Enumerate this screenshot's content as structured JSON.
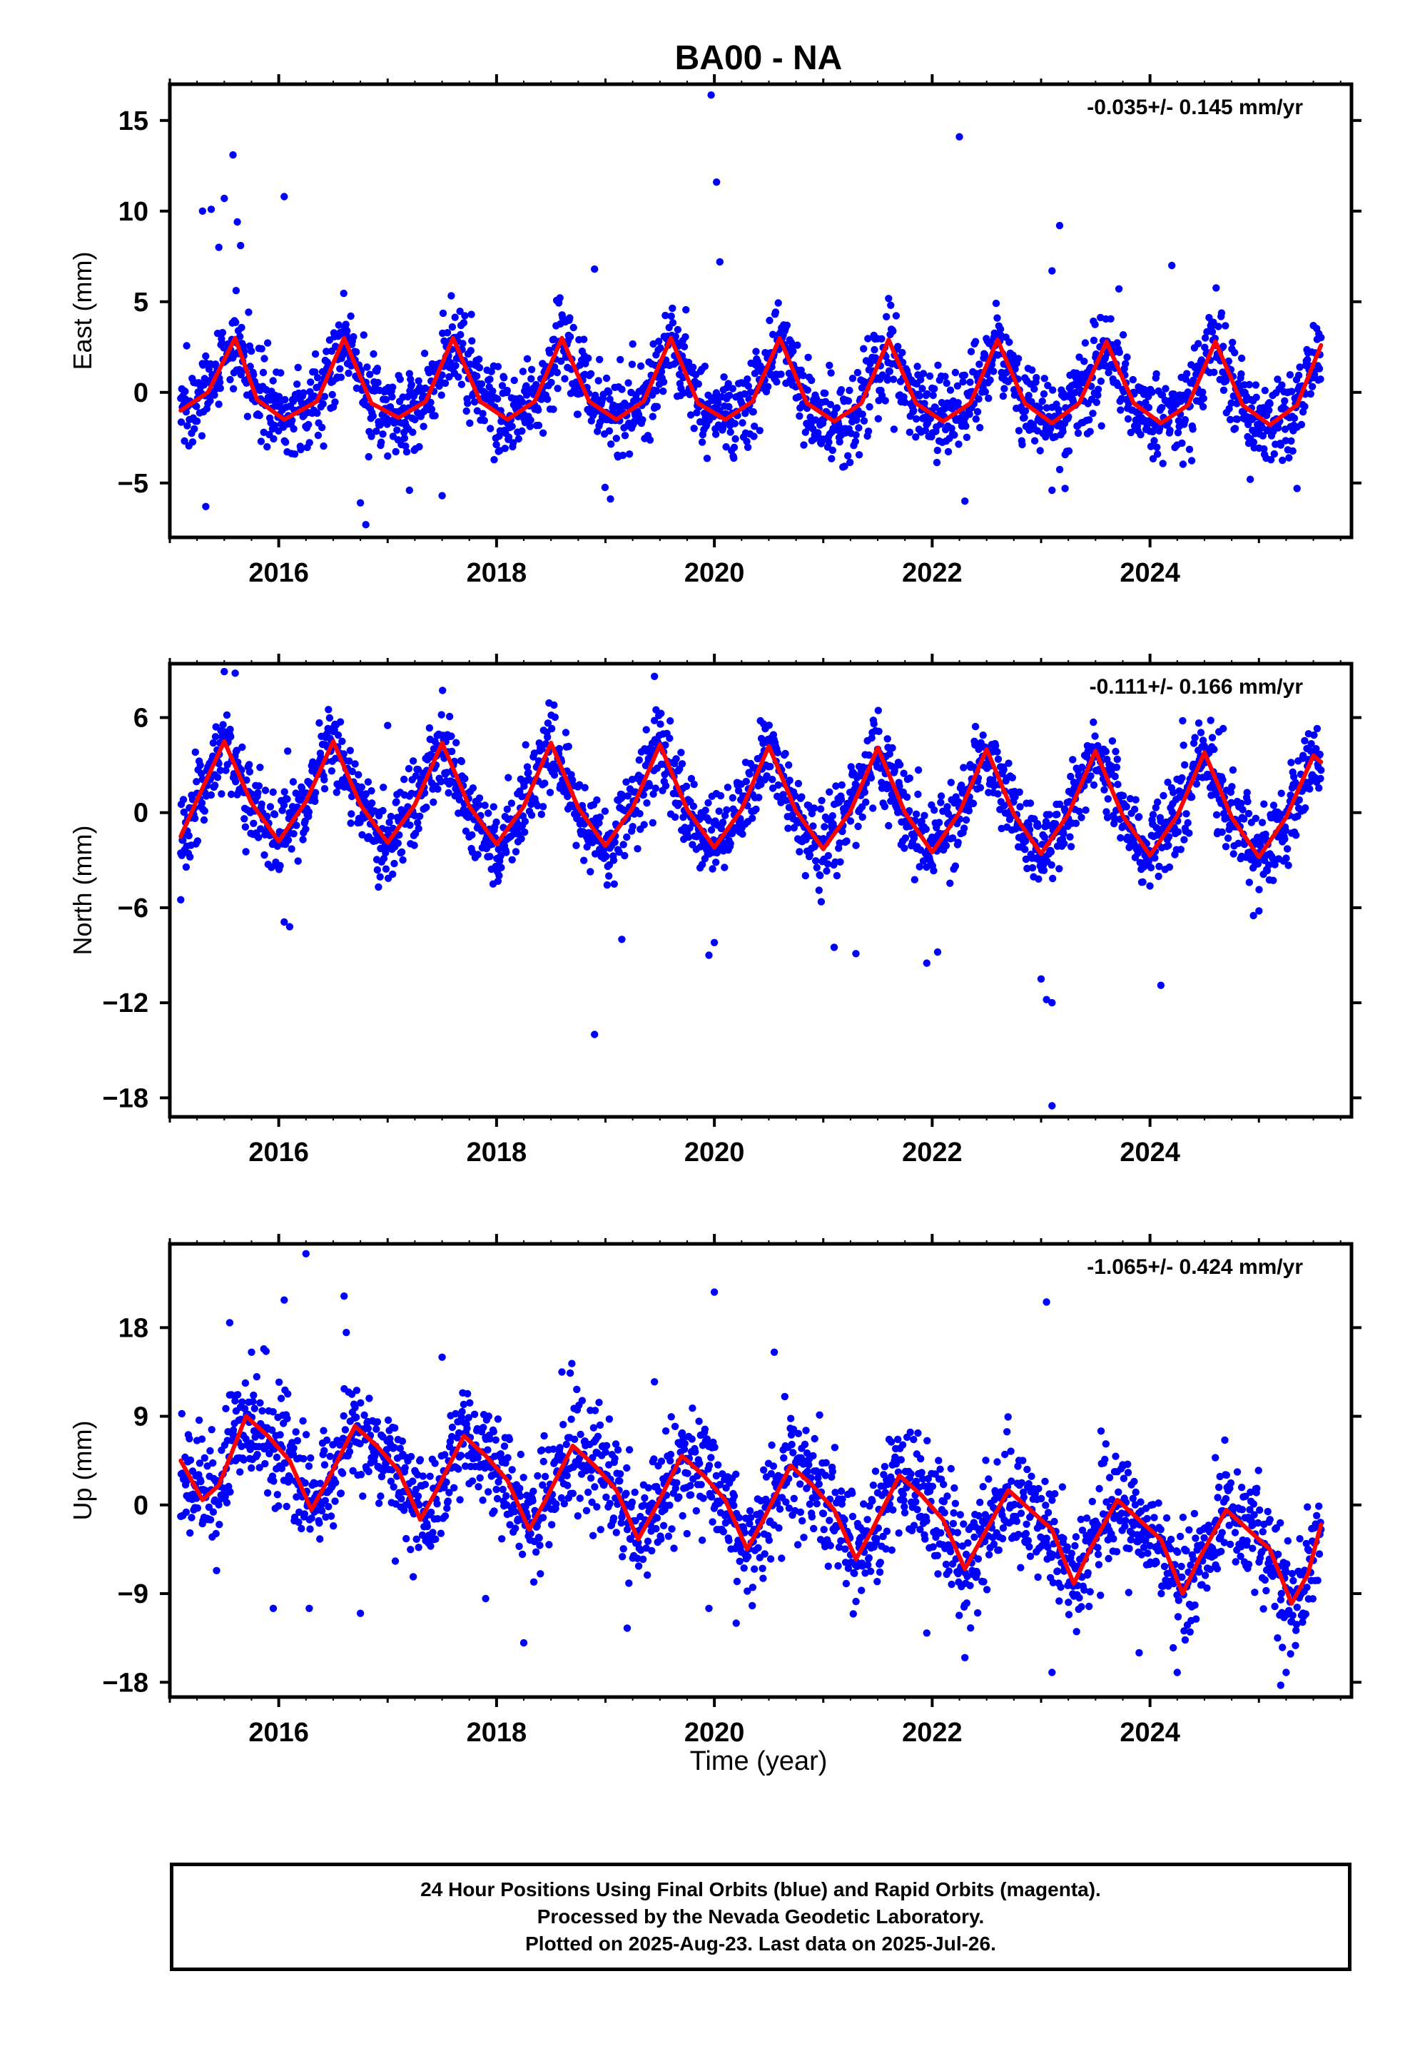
{
  "title": "BA00 - NA",
  "xlabel": "Time (year)",
  "footer": {
    "line1": "24 Hour Positions Using Final Orbits (blue) and Rapid Orbits (magenta).",
    "line2": "Processed by the Nevada Geodetic Laboratory.",
    "line3": "Plotted on 2025-Aug-23. Last data on 2025-Jul-26."
  },
  "colors": {
    "final_orbits": "#0000ff",
    "model_fit": "#ff0000",
    "axes": "#000000"
  },
  "chart_data": [
    {
      "type": "scatter",
      "name": "east",
      "ylabel": "East (mm)",
      "rate_label": "-0.035+/- 0.145 mm/yr",
      "xlim": [
        2015.0,
        2025.85
      ],
      "ylim": [
        -8.0,
        17.0
      ],
      "xticks": [
        2016,
        2018,
        2020,
        2022,
        2024
      ],
      "xtick_labels": [
        "2016",
        "2018",
        "2020",
        "2022",
        "2024"
      ],
      "yticks": [
        -5,
        0,
        5,
        10,
        15
      ],
      "ytick_labels": [
        "−5",
        "0",
        "5",
        "10",
        "15"
      ],
      "data_start": 2015.1,
      "data_end": 2025.57,
      "fit": {
        "x": [
          2015.1,
          2015.35,
          2015.6,
          2015.8,
          2016.05,
          2016.35,
          2016.6,
          2016.85,
          2017.1,
          2017.35,
          2017.6,
          2017.85,
          2018.1,
          2018.35,
          2018.6,
          2018.85,
          2019.1,
          2019.35,
          2019.6,
          2019.85,
          2020.1,
          2020.35,
          2020.6,
          2020.85,
          2021.1,
          2021.35,
          2021.6,
          2021.85,
          2022.1,
          2022.35,
          2022.6,
          2022.85,
          2023.1,
          2023.35,
          2023.6,
          2023.85,
          2024.1,
          2024.35,
          2024.6,
          2024.85,
          2025.1,
          2025.35,
          2025.57
        ],
        "y": [
          -1.0,
          0.0,
          3.0,
          -0.4,
          -1.5,
          -0.5,
          3.0,
          -0.6,
          -1.4,
          -0.5,
          3.0,
          -0.5,
          -1.5,
          -0.5,
          3.0,
          -0.5,
          -1.5,
          -0.5,
          3.0,
          -0.6,
          -1.5,
          -0.5,
          3.0,
          -0.6,
          -1.6,
          -0.6,
          2.9,
          -0.6,
          -1.6,
          -0.6,
          2.9,
          -0.6,
          -1.7,
          -0.6,
          2.8,
          -0.6,
          -1.7,
          -0.7,
          2.8,
          -0.7,
          -1.8,
          -0.7,
          2.6
        ]
      },
      "noise_sd": 1.2,
      "outliers": {
        "x": [
          2015.3,
          2015.33,
          2015.38,
          2015.5,
          2015.45,
          2015.58,
          2015.62,
          2015.65,
          2016.05,
          2016.75,
          2016.8,
          2017.2,
          2017.5,
          2018.9,
          2019.97,
          2020.02,
          2020.05,
          2022.25,
          2022.3,
          2023.1,
          2023.17,
          2023.1,
          2023.22,
          2024.2,
          2024.92,
          2025.35
        ],
        "y": [
          10.0,
          -6.3,
          10.1,
          10.7,
          8.0,
          13.1,
          9.4,
          8.1,
          10.8,
          -6.1,
          -7.3,
          -5.4,
          -5.7,
          6.8,
          16.4,
          11.6,
          7.2,
          14.1,
          -6.0,
          6.7,
          9.2,
          -5.4,
          -5.3,
          7.0,
          -4.8,
          -5.3
        ]
      }
    },
    {
      "type": "scatter",
      "name": "north",
      "ylabel": "North (mm)",
      "rate_label": "-0.111+/- 0.166 mm/yr",
      "xlim": [
        2015.0,
        2025.85
      ],
      "ylim": [
        -19.2,
        9.4
      ],
      "xticks": [
        2016,
        2018,
        2020,
        2022,
        2024
      ],
      "xtick_labels": [
        "2016",
        "2018",
        "2020",
        "2022",
        "2024"
      ],
      "yticks": [
        -18,
        -12,
        -6,
        0,
        6
      ],
      "ytick_labels": [
        "−18",
        "−12",
        "−6",
        "0",
        "6"
      ],
      "data_start": 2015.1,
      "data_end": 2025.57,
      "fit": {
        "x": [
          2015.1,
          2015.25,
          2015.5,
          2015.75,
          2016.0,
          2016.25,
          2016.5,
          2016.75,
          2017.0,
          2017.25,
          2017.5,
          2017.75,
          2018.0,
          2018.25,
          2018.5,
          2018.75,
          2019.0,
          2019.25,
          2019.5,
          2019.75,
          2020.0,
          2020.25,
          2020.5,
          2020.75,
          2021.0,
          2021.25,
          2021.5,
          2021.75,
          2022.0,
          2022.25,
          2022.5,
          2022.75,
          2023.0,
          2023.25,
          2023.5,
          2023.75,
          2024.0,
          2024.25,
          2024.5,
          2024.75,
          2025.0,
          2025.25,
          2025.5,
          2025.57
        ],
        "y": [
          -1.5,
          0.8,
          4.5,
          0.6,
          -1.8,
          0.7,
          4.5,
          0.5,
          -1.9,
          0.5,
          4.4,
          0.4,
          -2.0,
          0.4,
          4.4,
          0.3,
          -2.1,
          0.3,
          4.3,
          0.2,
          -2.2,
          0.2,
          4.2,
          0.1,
          -2.3,
          0.1,
          4.1,
          0.0,
          -2.5,
          0.0,
          4.0,
          -0.1,
          -2.6,
          -0.1,
          3.9,
          -0.2,
          -2.7,
          -0.2,
          3.8,
          -0.3,
          -2.8,
          -0.3,
          3.6,
          3.2
        ]
      },
      "noise_sd": 1.3,
      "outliers": {
        "x": [
          2015.1,
          2015.5,
          2015.6,
          2016.05,
          2016.1,
          2017.0,
          2018.9,
          2019.15,
          2019.45,
          2019.95,
          2020.0,
          2021.1,
          2021.3,
          2021.95,
          2022.05,
          2023.0,
          2023.05,
          2023.1,
          2023.1,
          2024.1,
          2024.3,
          2024.95,
          2025.0
        ],
        "y": [
          -5.5,
          8.9,
          8.8,
          -6.9,
          -7.2,
          5.5,
          -14.0,
          -8.0,
          8.6,
          -9.0,
          -8.2,
          -8.5,
          -8.9,
          -9.5,
          -8.8,
          -10.5,
          -11.8,
          -12.0,
          -18.5,
          -10.9,
          5.8,
          -6.5,
          -6.2
        ]
      }
    },
    {
      "type": "scatter",
      "name": "up",
      "ylabel": "Up (mm)",
      "rate_label": "-1.065+/- 0.424 mm/yr",
      "xlim": [
        2015.0,
        2025.85
      ],
      "ylim": [
        -19.5,
        26.5
      ],
      "xticks": [
        2016,
        2018,
        2020,
        2022,
        2024
      ],
      "xtick_labels": [
        "2016",
        "2018",
        "2020",
        "2022",
        "2024"
      ],
      "yticks": [
        -18,
        -9,
        0,
        9,
        18
      ],
      "ytick_labels": [
        "−18",
        "−9",
        "0",
        "9",
        "18"
      ],
      "data_start": 2015.1,
      "data_end": 2025.57,
      "fit": {
        "x": [
          2015.1,
          2015.3,
          2015.45,
          2015.7,
          2015.9,
          2016.1,
          2016.3,
          2016.45,
          2016.7,
          2016.9,
          2017.1,
          2017.3,
          2017.45,
          2017.7,
          2017.9,
          2018.1,
          2018.3,
          2018.45,
          2018.7,
          2018.9,
          2019.1,
          2019.3,
          2019.45,
          2019.7,
          2019.9,
          2020.1,
          2020.3,
          2020.45,
          2020.7,
          2020.9,
          2021.1,
          2021.3,
          2021.45,
          2021.7,
          2021.9,
          2022.1,
          2022.3,
          2022.45,
          2022.7,
          2022.9,
          2023.1,
          2023.3,
          2023.45,
          2023.7,
          2023.9,
          2024.1,
          2024.3,
          2024.45,
          2024.7,
          2024.9,
          2025.1,
          2025.3,
          2025.45,
          2025.57
        ],
        "y": [
          4.5,
          0.5,
          2.0,
          9.0,
          7.0,
          4.5,
          -0.5,
          2.5,
          8.0,
          6.0,
          3.5,
          -1.5,
          1.5,
          7.0,
          5.0,
          2.5,
          -2.5,
          0.5,
          6.0,
          4.0,
          1.5,
          -3.5,
          -0.5,
          5.0,
          3.0,
          0.5,
          -4.5,
          -1.5,
          4.0,
          2.0,
          -0.5,
          -5.5,
          -2.5,
          3.0,
          1.0,
          -1.5,
          -6.5,
          -3.5,
          1.5,
          -0.5,
          -2.5,
          -8.0,
          -4.5,
          0.5,
          -1.5,
          -3.5,
          -9.0,
          -5.5,
          -0.5,
          -2.5,
          -4.5,
          -10.0,
          -7.0,
          -2.0
        ]
      },
      "noise_sd": 2.8,
      "outliers": {
        "x": [
          2015.55,
          2015.75,
          2015.95,
          2016.05,
          2016.25,
          2016.28,
          2016.6,
          2016.62,
          2016.75,
          2017.5,
          2017.9,
          2018.25,
          2018.6,
          2019.2,
          2019.45,
          2019.95,
          2020.0,
          2020.2,
          2020.55,
          2021.95,
          2022.3,
          2023.05,
          2023.1,
          2023.55,
          2023.9,
          2024.25,
          2024.6,
          2025.2,
          2025.25
        ],
        "y": [
          18.5,
          15.5,
          -10.5,
          20.8,
          25.5,
          -10.5,
          21.2,
          17.5,
          -11.0,
          15.0,
          -9.5,
          -14.0,
          13.5,
          -12.5,
          12.5,
          -10.5,
          21.6,
          -12.0,
          15.5,
          -13.0,
          -15.5,
          20.6,
          -17.0,
          7.5,
          -15.0,
          -17.0,
          4.8,
          -18.3,
          -17.0
        ]
      }
    }
  ]
}
